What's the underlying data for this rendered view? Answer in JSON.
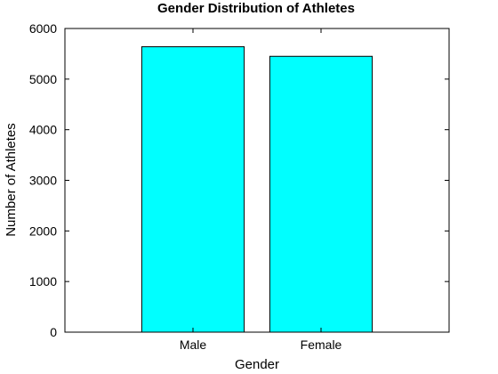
{
  "chart_data": {
    "type": "bar",
    "title": "Gender Distribution of Athletes",
    "xlabel": "Gender",
    "ylabel": "Number of Athletes",
    "categories": [
      "Male",
      "Female"
    ],
    "values": [
      5640,
      5450
    ],
    "ylim": [
      0,
      6000
    ],
    "yticks": [
      0,
      1000,
      2000,
      3000,
      4000,
      5000,
      6000
    ],
    "grid": false,
    "bar_color": "#00ffff",
    "edge_color": "#000000"
  }
}
